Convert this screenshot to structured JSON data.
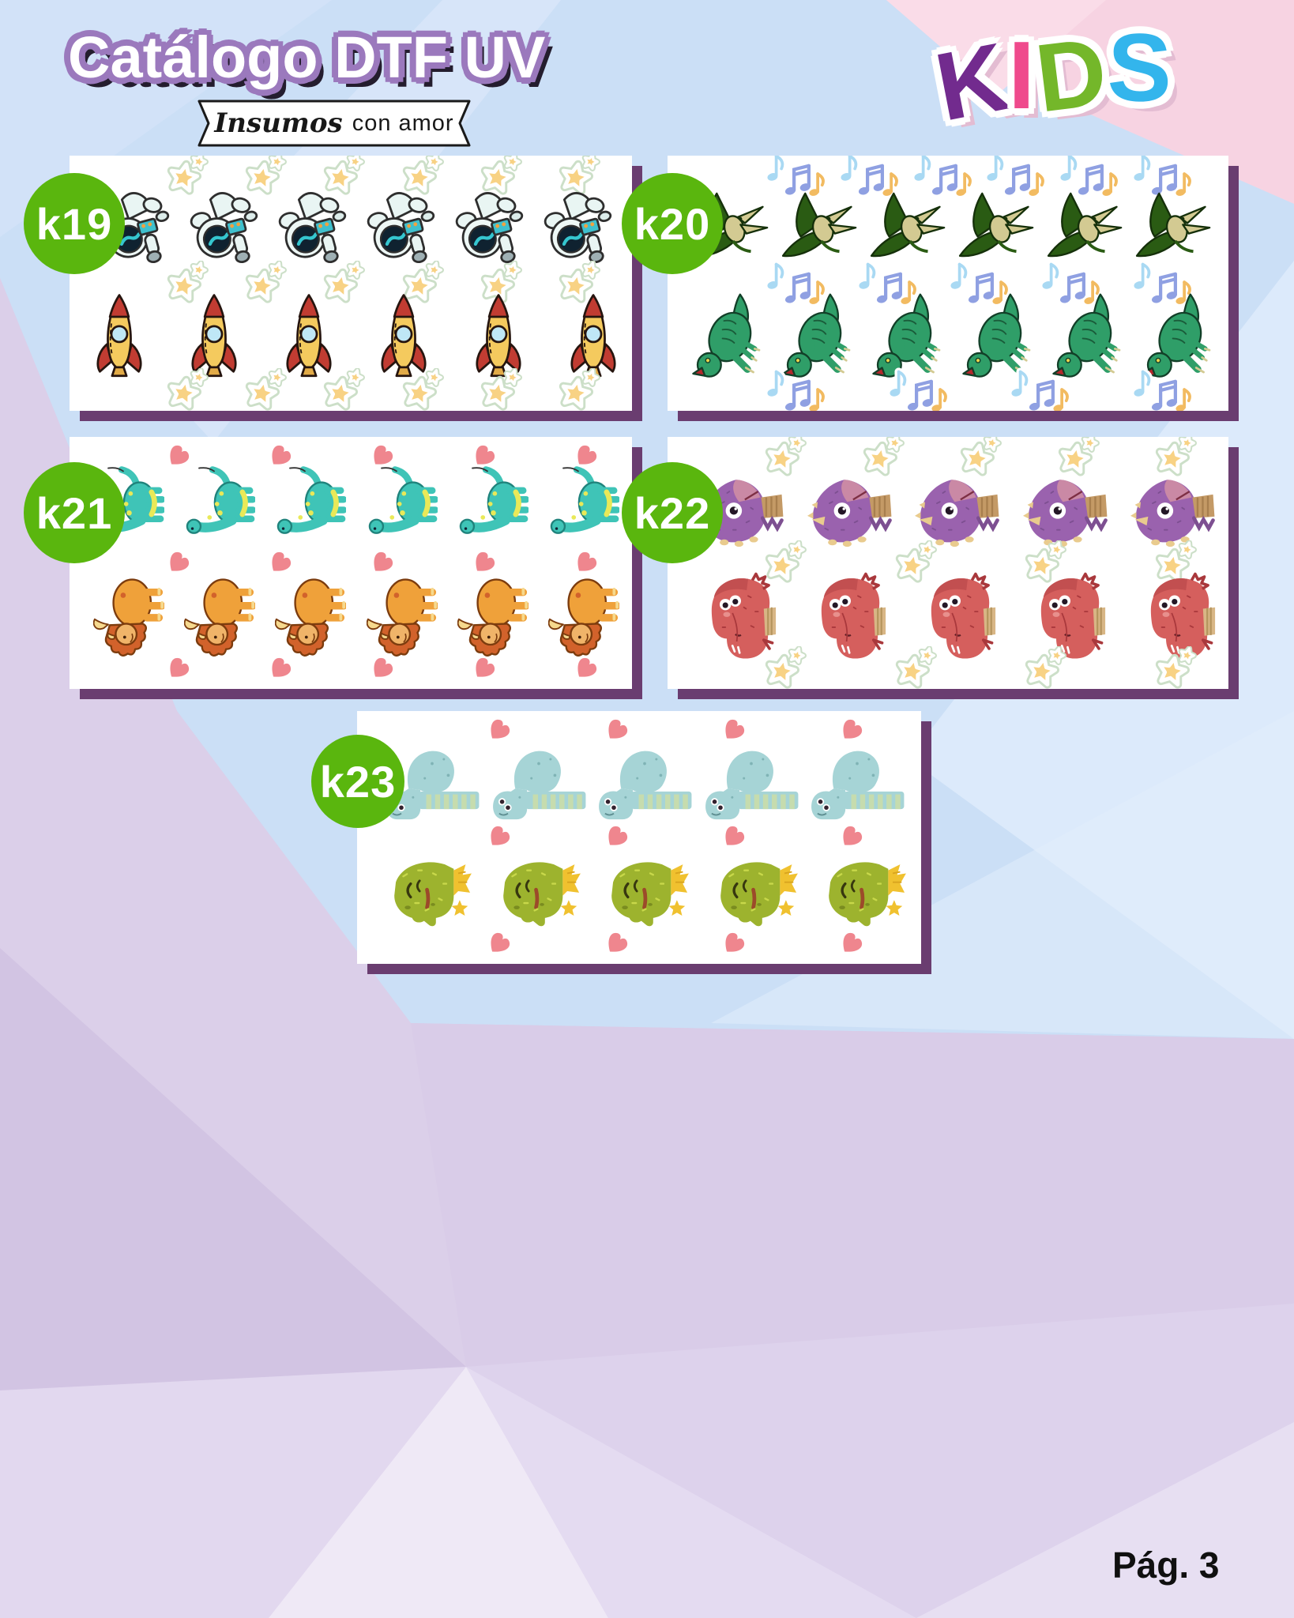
{
  "header": {
    "title": "Catálogo DTF UV",
    "ribbon": {
      "script_word": "Insumos",
      "rest": "con amor"
    },
    "logo": {
      "word": "KIDS",
      "letters": [
        {
          "char": "K",
          "color": "#722b8e"
        },
        {
          "char": "I",
          "color": "#ef4a8c"
        },
        {
          "char": "D",
          "color": "#74b72a"
        },
        {
          "char": "S",
          "color": "#33b5ec"
        }
      ]
    }
  },
  "footer": {
    "page_label": "Pág. 3"
  },
  "colors": {
    "badge_green": "#5ab60e",
    "panel_shadow_purple": "#6a3d70",
    "sheet_white": "#ffffff",
    "star_yellow": "#f8d284",
    "heart_pink": "#ef868e",
    "bg_blue": "#cbdff6",
    "bg_pink": "#f7d3e2",
    "bg_lavender": "#d8cbe8",
    "title_outline": "#9b79bd"
  },
  "panels": [
    {
      "label": "K19",
      "rows": [
        {
          "type": "star",
          "item": "star-sticker",
          "deco": true,
          "count": 6
        },
        {
          "type": "astronaut",
          "item": "astronaut-sticker",
          "deco": false,
          "count": 6
        },
        {
          "type": "star",
          "item": "star-sticker",
          "deco": true,
          "count": 6
        },
        {
          "type": "rocket",
          "item": "rocket-sticker",
          "deco": false,
          "count": 6
        },
        {
          "type": "star",
          "item": "star-sticker",
          "deco": true,
          "count": 6
        }
      ]
    },
    {
      "label": "K20",
      "rows": [
        {
          "type": "notes",
          "item": "music-notes-sticker",
          "deco": true,
          "count": 6
        },
        {
          "type": "ptero",
          "item": "pterodactyl-sticker",
          "deco": false,
          "count": 6
        },
        {
          "type": "notes",
          "item": "music-notes-sticker",
          "deco": true,
          "count": 5
        },
        {
          "type": "trex",
          "item": "t-rex-sticker",
          "deco": false,
          "count": 6
        },
        {
          "type": "notes",
          "item": "music-notes-sticker",
          "deco": true,
          "count": 4
        }
      ]
    },
    {
      "label": "K21",
      "rows": [
        {
          "type": "heart",
          "item": "heart-sticker",
          "deco": true,
          "count": 5
        },
        {
          "type": "sauro",
          "item": "teal-sauropod-sticker",
          "deco": false,
          "count": 6
        },
        {
          "type": "heart",
          "item": "heart-sticker",
          "deco": true,
          "count": 5
        },
        {
          "type": "tric",
          "item": "triceratops-sticker",
          "deco": false,
          "count": 6
        },
        {
          "type": "heart",
          "item": "heart-sticker",
          "deco": true,
          "count": 5
        }
      ]
    },
    {
      "label": "K22",
      "rows": [
        {
          "type": "star",
          "item": "star-sticker",
          "deco": true,
          "count": 5
        },
        {
          "type": "purple",
          "item": "purple-dino-sticker",
          "deco": false,
          "count": 5
        },
        {
          "type": "star",
          "item": "star-sticker",
          "deco": true,
          "count": 4
        },
        {
          "type": "red",
          "item": "red-dino-sticker",
          "deco": false,
          "count": 5
        },
        {
          "type": "star",
          "item": "star-sticker",
          "deco": true,
          "count": 4
        }
      ]
    },
    {
      "label": "K23",
      "rows": [
        {
          "type": "heart",
          "item": "heart-sticker",
          "deco": true,
          "count": 4
        },
        {
          "type": "bluedino",
          "item": "blue-sauropod-sticker",
          "deco": false,
          "count": 5
        },
        {
          "type": "heart",
          "item": "heart-sticker",
          "deco": true,
          "count": 4
        },
        {
          "type": "greendino",
          "item": "green-dino-sticker",
          "deco": false,
          "count": 5
        },
        {
          "type": "heart",
          "item": "heart-sticker",
          "deco": true,
          "count": 4
        }
      ]
    }
  ]
}
